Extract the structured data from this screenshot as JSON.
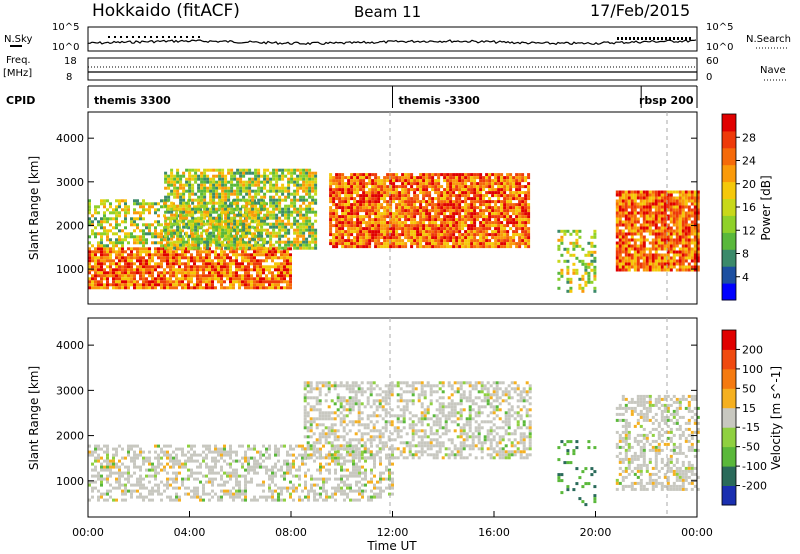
{
  "header": {
    "station": "Hokkaido (fitACF)",
    "beam": "Beam 11",
    "date": "17/Feb/2015"
  },
  "strip_panels": {
    "nsky_label": "N.Sky",
    "nsky_ticks": [
      "10^5",
      "10^0"
    ],
    "nsearch_label": "N.Search",
    "nsearch_ticks": [
      "10^5",
      "10^0"
    ],
    "freq_label_line1": "Freq.",
    "freq_label_line2": "[MHz]",
    "freq_ticks": [
      "18",
      "8"
    ],
    "nave_label": "Nave",
    "nave_ticks": [
      "60",
      "0"
    ],
    "cpid_label": "CPID",
    "cpid_segments": [
      {
        "label": "themis 3300",
        "start_hr": 0,
        "end_hr": 12
      },
      {
        "label": "themis -3300",
        "start_hr": 12,
        "end_hr": 21.8
      },
      {
        "label": "rbsp 200",
        "start_hr": 21.8,
        "end_hr": 24
      }
    ]
  },
  "chart_data": [
    {
      "type": "heatmap",
      "title": "Power",
      "ylabel": "Slant Range [km]",
      "xlabel": "",
      "xlim": [
        0,
        24
      ],
      "ylim": [
        200,
        4600
      ],
      "yticks": [
        "1000",
        "2000",
        "3000",
        "4000"
      ],
      "colorbar": {
        "label": "Power [dB]",
        "ticks": [
          "28",
          "24",
          "20",
          "16",
          "12",
          "8",
          "4"
        ],
        "colors": [
          "#0000ff",
          "#1c4fa0",
          "#3b8a6a",
          "#59b83b",
          "#8fd12a",
          "#c8d81a",
          "#f5c80a",
          "#fa9a0a",
          "#f56a0a",
          "#ee3a0a",
          "#e00000"
        ]
      },
      "regions": [
        {
          "x": [
            0,
            8
          ],
          "y": [
            600,
            1500
          ],
          "level": 0.85
        },
        {
          "x": [
            0,
            7
          ],
          "y": [
            1500,
            2600
          ],
          "level": 0.55
        },
        {
          "x": [
            3,
            9
          ],
          "y": [
            1500,
            3300
          ],
          "level": 0.75
        },
        {
          "x": [
            9.5,
            17.4
          ],
          "y": [
            1500,
            3200
          ],
          "level": 0.9
        },
        {
          "x": [
            20.8,
            24
          ],
          "y": [
            1000,
            2800
          ],
          "level": 0.9
        },
        {
          "x": [
            18.5,
            20
          ],
          "y": [
            500,
            1900
          ],
          "level": 0.35
        }
      ]
    },
    {
      "type": "heatmap",
      "title": "Velocity",
      "ylabel": "Slant Range [km]",
      "xlabel": "Time UT",
      "xlim": [
        0,
        24
      ],
      "ylim": [
        200,
        4600
      ],
      "xticks": [
        "00:00",
        "04:00",
        "08:00",
        "12:00",
        "16:00",
        "20:00",
        "00:00"
      ],
      "yticks": [
        "1000",
        "2000",
        "3000",
        "4000"
      ],
      "colorbar": {
        "label": "Velocity [m s^-1]",
        "ticks": [
          "200",
          "100",
          "50",
          "15",
          "-15",
          "-50",
          "-100",
          "-200"
        ],
        "colors": [
          "#1a2fb0",
          "#2a6a5a",
          "#5ab83a",
          "#8fd040",
          "#c8c8c0",
          "#f5b020",
          "#f57a10",
          "#f04a10",
          "#e00000"
        ]
      },
      "regions": [
        {
          "x": [
            0,
            12
          ],
          "y": [
            600,
            1800
          ],
          "level": 0.5
        },
        {
          "x": [
            8.5,
            17.4
          ],
          "y": [
            1500,
            3200
          ],
          "level": 0.5
        },
        {
          "x": [
            20.8,
            24
          ],
          "y": [
            800,
            2900
          ],
          "level": 0.5
        },
        {
          "x": [
            18.5,
            20
          ],
          "y": [
            500,
            1900
          ],
          "level": 0.2
        }
      ]
    }
  ]
}
